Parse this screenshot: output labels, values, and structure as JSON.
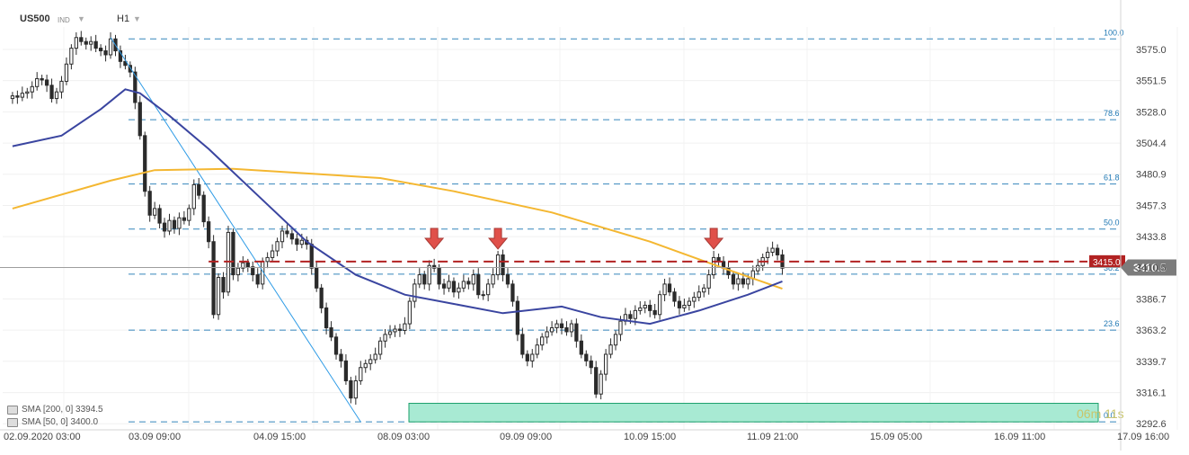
{
  "header": {
    "symbol": "US500",
    "market_tag": "IND",
    "timeframe": "H1"
  },
  "indicators": [
    {
      "label": "SMA [200, 0] 3394.5",
      "color": "#f4b731"
    },
    {
      "label": "SMA [50, 0] 3400.0",
      "color": "#3a45a0"
    }
  ],
  "price_labels": {
    "resistance": "3415.0",
    "current": "3410.5",
    "countdown_minutes": "06",
    "countdown_m_unit": "m",
    "countdown_seconds": "11",
    "countdown_s_unit": "s"
  },
  "colors": {
    "candle": "#2b2b2b",
    "sma200": "#f4b731",
    "sma50": "#3a45a0",
    "fib": "#1f78b4",
    "resistance": "#b22222",
    "arrow": "#e0504a",
    "zone_fill": "#a8ead3",
    "zone_border": "#1a9f6a",
    "trendline": "#2e9be6"
  },
  "chart_data": {
    "type": "candlestick",
    "ylim": [
      3288,
      3592
    ],
    "y_ticks": [
      "3575.0",
      "3551.5",
      "3528.0",
      "3504.4",
      "3480.9",
      "3457.3",
      "3433.8",
      "3410.5",
      "3386.7",
      "3363.2",
      "3339.7",
      "3316.1",
      "3292.6"
    ],
    "x_labels": [
      "02.09.2020  03:00",
      "03.09  09:00",
      "04.09  15:00",
      "08.09  03:00",
      "09.09  09:00",
      "10.09  15:00",
      "11.09  21:00",
      "15.09  05:00",
      "16.09  11:00",
      "17.09  16:00"
    ],
    "fibonacci_levels": [
      {
        "label": "100.0",
        "price": 3583.0
      },
      {
        "label": "78.6",
        "price": 3522.0
      },
      {
        "label": "61.8",
        "price": 3473.5
      },
      {
        "label": "50.0",
        "price": 3439.5
      },
      {
        "label": "38.2",
        "price": 3405.5
      },
      {
        "label": "23.6",
        "price": 3363.2
      },
      {
        "label": "0.0",
        "price": 3294.0
      }
    ],
    "resistance_level": 3415.0,
    "current_price": 3410.5,
    "support_zone": [
      3294.0,
      3308.0
    ],
    "arrow_hours": [
      86,
      99,
      143
    ],
    "candles": [
      {
        "h": 0,
        "c": 3540
      },
      {
        "h": 1,
        "c": 3539
      },
      {
        "h": 2,
        "c": 3542
      },
      {
        "h": 3,
        "c": 3543
      },
      {
        "h": 4,
        "c": 3547
      },
      {
        "h": 5,
        "c": 3553
      },
      {
        "h": 6,
        "c": 3552
      },
      {
        "h": 7,
        "c": 3548
      },
      {
        "h": 8,
        "c": 3538
      },
      {
        "h": 9,
        "c": 3543
      },
      {
        "h": 10,
        "c": 3551
      },
      {
        "h": 11,
        "c": 3564
      },
      {
        "h": 12,
        "c": 3576
      },
      {
        "h": 13,
        "c": 3584
      },
      {
        "h": 14,
        "c": 3581
      },
      {
        "h": 15,
        "c": 3579
      },
      {
        "h": 16,
        "c": 3581
      },
      {
        "h": 17,
        "c": 3576
      },
      {
        "h": 18,
        "c": 3574
      },
      {
        "h": 19,
        "c": 3571
      },
      {
        "h": 20,
        "c": 3583
      },
      {
        "h": 21,
        "c": 3574
      },
      {
        "h": 22,
        "c": 3566
      },
      {
        "h": 23,
        "c": 3563
      },
      {
        "h": 24,
        "c": 3558
      },
      {
        "h": 25,
        "c": 3535
      },
      {
        "h": 26,
        "c": 3510
      },
      {
        "h": 27,
        "c": 3468
      },
      {
        "h": 28,
        "c": 3450
      },
      {
        "h": 29,
        "c": 3455
      },
      {
        "h": 30,
        "c": 3444
      },
      {
        "h": 31,
        "c": 3438
      },
      {
        "h": 32,
        "c": 3446
      },
      {
        "h": 33,
        "c": 3440
      },
      {
        "h": 34,
        "c": 3448
      },
      {
        "h": 35,
        "c": 3446
      },
      {
        "h": 36,
        "c": 3455
      },
      {
        "h": 37,
        "c": 3473
      },
      {
        "h": 38,
        "c": 3465
      },
      {
        "h": 39,
        "c": 3445
      },
      {
        "h": 40,
        "c": 3430
      },
      {
        "h": 41,
        "c": 3375
      },
      {
        "h": 42,
        "c": 3403
      },
      {
        "h": 43,
        "c": 3392
      },
      {
        "h": 44,
        "c": 3437
      },
      {
        "h": 45,
        "c": 3405
      },
      {
        "h": 46,
        "c": 3410
      },
      {
        "h": 47,
        "c": 3414
      },
      {
        "h": 48,
        "c": 3411
      },
      {
        "h": 49,
        "c": 3405
      },
      {
        "h": 50,
        "c": 3398
      },
      {
        "h": 51,
        "c": 3415
      },
      {
        "h": 52,
        "c": 3418
      },
      {
        "h": 53,
        "c": 3423
      },
      {
        "h": 54,
        "c": 3430
      },
      {
        "h": 55,
        "c": 3438
      },
      {
        "h": 56,
        "c": 3436
      },
      {
        "h": 57,
        "c": 3432
      },
      {
        "h": 58,
        "c": 3428
      },
      {
        "h": 59,
        "c": 3431
      },
      {
        "h": 60,
        "c": 3428
      },
      {
        "h": 61,
        "c": 3410
      },
      {
        "h": 62,
        "c": 3395
      },
      {
        "h": 63,
        "c": 3380
      },
      {
        "h": 64,
        "c": 3365
      },
      {
        "h": 65,
        "c": 3358
      },
      {
        "h": 66,
        "c": 3345
      },
      {
        "h": 67,
        "c": 3340
      },
      {
        "h": 68,
        "c": 3325
      },
      {
        "h": 69,
        "c": 3312
      },
      {
        "h": 70,
        "c": 3325
      },
      {
        "h": 71,
        "c": 3335
      },
      {
        "h": 72,
        "c": 3338
      },
      {
        "h": 73,
        "c": 3341
      },
      {
        "h": 74,
        "c": 3345
      },
      {
        "h": 75,
        "c": 3355
      },
      {
        "h": 76,
        "c": 3360
      },
      {
        "h": 77,
        "c": 3362
      },
      {
        "h": 78,
        "c": 3364
      },
      {
        "h": 79,
        "c": 3363
      },
      {
        "h": 80,
        "c": 3368
      },
      {
        "h": 81,
        "c": 3385
      },
      {
        "h": 82,
        "c": 3398
      },
      {
        "h": 83,
        "c": 3405
      },
      {
        "h": 84,
        "c": 3398
      },
      {
        "h": 85,
        "c": 3412
      },
      {
        "h": 86,
        "c": 3410
      },
      {
        "h": 87,
        "c": 3398
      },
      {
        "h": 88,
        "c": 3395
      },
      {
        "h": 89,
        "c": 3400
      },
      {
        "h": 90,
        "c": 3392
      },
      {
        "h": 91,
        "c": 3395
      },
      {
        "h": 92,
        "c": 3400
      },
      {
        "h": 93,
        "c": 3398
      },
      {
        "h": 94,
        "c": 3405
      },
      {
        "h": 95,
        "c": 3390
      },
      {
        "h": 96,
        "c": 3390
      },
      {
        "h": 97,
        "c": 3398
      },
      {
        "h": 98,
        "c": 3405
      },
      {
        "h": 99,
        "c": 3420
      },
      {
        "h": 100,
        "c": 3405
      },
      {
        "h": 101,
        "c": 3398
      },
      {
        "h": 102,
        "c": 3385
      },
      {
        "h": 103,
        "c": 3360
      },
      {
        "h": 104,
        "c": 3345
      },
      {
        "h": 105,
        "c": 3340
      },
      {
        "h": 106,
        "c": 3345
      },
      {
        "h": 107,
        "c": 3352
      },
      {
        "h": 108,
        "c": 3358
      },
      {
        "h": 109,
        "c": 3362
      },
      {
        "h": 110,
        "c": 3365
      },
      {
        "h": 111,
        "c": 3368
      },
      {
        "h": 112,
        "c": 3365
      },
      {
        "h": 113,
        "c": 3362
      },
      {
        "h": 114,
        "c": 3368
      },
      {
        "h": 115,
        "c": 3355
      },
      {
        "h": 116,
        "c": 3345
      },
      {
        "h": 117,
        "c": 3340
      },
      {
        "h": 118,
        "c": 3335
      },
      {
        "h": 119,
        "c": 3315
      },
      {
        "h": 120,
        "c": 3330
      },
      {
        "h": 121,
        "c": 3345
      },
      {
        "h": 122,
        "c": 3352
      },
      {
        "h": 123,
        "c": 3360
      },
      {
        "h": 124,
        "c": 3370
      },
      {
        "h": 125,
        "c": 3375
      },
      {
        "h": 126,
        "c": 3372
      },
      {
        "h": 127,
        "c": 3378
      },
      {
        "h": 128,
        "c": 3380
      },
      {
        "h": 129,
        "c": 3382
      },
      {
        "h": 130,
        "c": 3378
      },
      {
        "h": 131,
        "c": 3375
      },
      {
        "h": 132,
        "c": 3390
      },
      {
        "h": 133,
        "c": 3398
      },
      {
        "h": 134,
        "c": 3392
      },
      {
        "h": 135,
        "c": 3385
      },
      {
        "h": 136,
        "c": 3380
      },
      {
        "h": 137,
        "c": 3382
      },
      {
        "h": 138,
        "c": 3385
      },
      {
        "h": 139,
        "c": 3388
      },
      {
        "h": 140,
        "c": 3392
      },
      {
        "h": 141,
        "c": 3395
      },
      {
        "h": 142,
        "c": 3405
      },
      {
        "h": 143,
        "c": 3418
      },
      {
        "h": 144,
        "c": 3415
      },
      {
        "h": 145,
        "c": 3410
      },
      {
        "h": 146,
        "c": 3405
      },
      {
        "h": 147,
        "c": 3398
      },
      {
        "h": 148,
        "c": 3402
      },
      {
        "h": 149,
        "c": 3398
      },
      {
        "h": 150,
        "c": 3402
      },
      {
        "h": 151,
        "c": 3408
      },
      {
        "h": 152,
        "c": 3412
      },
      {
        "h": 153,
        "c": 3418
      },
      {
        "h": 154,
        "c": 3422
      },
      {
        "h": 155,
        "c": 3425
      },
      {
        "h": 156,
        "c": 3420
      },
      {
        "h": 157,
        "c": 3410
      }
    ],
    "sma200": [
      {
        "h": 0,
        "v": 3455
      },
      {
        "h": 20,
        "v": 3476
      },
      {
        "h": 29,
        "v": 3484
      },
      {
        "h": 45,
        "v": 3485
      },
      {
        "h": 75,
        "v": 3478
      },
      {
        "h": 90,
        "v": 3468
      },
      {
        "h": 110,
        "v": 3452
      },
      {
        "h": 130,
        "v": 3430
      },
      {
        "h": 145,
        "v": 3410
      },
      {
        "h": 157,
        "v": 3394.5
      }
    ],
    "sma50": [
      {
        "h": 0,
        "v": 3502
      },
      {
        "h": 10,
        "v": 3510
      },
      {
        "h": 18,
        "v": 3530
      },
      {
        "h": 23,
        "v": 3545
      },
      {
        "h": 26,
        "v": 3542
      },
      {
        "h": 32,
        "v": 3525
      },
      {
        "h": 40,
        "v": 3500
      },
      {
        "h": 50,
        "v": 3465
      },
      {
        "h": 60,
        "v": 3430
      },
      {
        "h": 70,
        "v": 3405
      },
      {
        "h": 80,
        "v": 3390
      },
      {
        "h": 90,
        "v": 3383
      },
      {
        "h": 100,
        "v": 3376
      },
      {
        "h": 112,
        "v": 3381
      },
      {
        "h": 120,
        "v": 3373
      },
      {
        "h": 130,
        "v": 3368
      },
      {
        "h": 140,
        "v": 3378
      },
      {
        "h": 150,
        "v": 3390
      },
      {
        "h": 157,
        "v": 3400
      }
    ]
  }
}
